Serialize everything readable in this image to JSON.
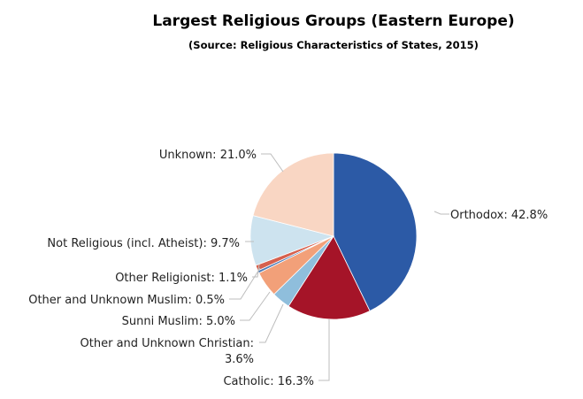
{
  "chart_data": {
    "type": "pie",
    "title": "Largest Religious Groups (Eastern Europe)",
    "subtitle": "(Source: Religious Characteristics of States, 2015)",
    "slices": [
      {
        "label": "Orthodox",
        "value": 42.8,
        "display": "42.8%",
        "color": "#2c5aa6"
      },
      {
        "label": "Catholic",
        "value": 16.3,
        "display": "16.3%",
        "color": "#a51428"
      },
      {
        "label": "Other and Unknown Christian",
        "value": 3.6,
        "display": "3.6%",
        "color": "#8fbedc"
      },
      {
        "label": "Sunni Muslim",
        "value": 5.0,
        "display": "5.0%",
        "color": "#f2a079"
      },
      {
        "label": "Other and Unknown Muslim",
        "value": 0.5,
        "display": "0.5%",
        "color": "#4a7ab5"
      },
      {
        "label": "Other Religionist",
        "value": 1.1,
        "display": "1.1%",
        "color": "#d6604d"
      },
      {
        "label": "Not Religious (incl. Atheist)",
        "value": 9.7,
        "display": "9.7%",
        "color": "#cde3ef"
      },
      {
        "label": "Unknown",
        "value": 21.0,
        "display": "21.0%",
        "color": "#f9d6c3"
      }
    ]
  }
}
